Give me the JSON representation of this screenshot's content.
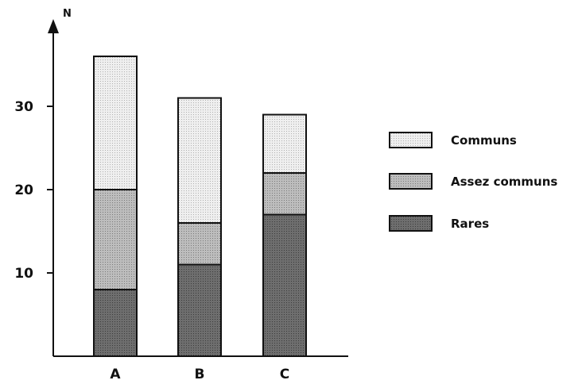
{
  "chart_data": {
    "type": "bar",
    "stacked": true,
    "ylabel": "N",
    "categories": [
      "A",
      "B",
      "C"
    ],
    "yticks": [
      10,
      20,
      30
    ],
    "ylim": [
      0,
      40
    ],
    "series": [
      {
        "name": "Rares",
        "values": [
          8,
          11,
          17
        ],
        "color": "#6e6e6e"
      },
      {
        "name": "Assez communs",
        "values": [
          12,
          5,
          5
        ],
        "color": "#b4b4b4"
      },
      {
        "name": "Communs",
        "values": [
          16,
          15,
          7
        ],
        "color": "#e8e8e8"
      }
    ],
    "legend": {
      "placement": "right",
      "order": [
        "Communs",
        "Assez communs",
        "Rares"
      ]
    },
    "grid": false
  }
}
